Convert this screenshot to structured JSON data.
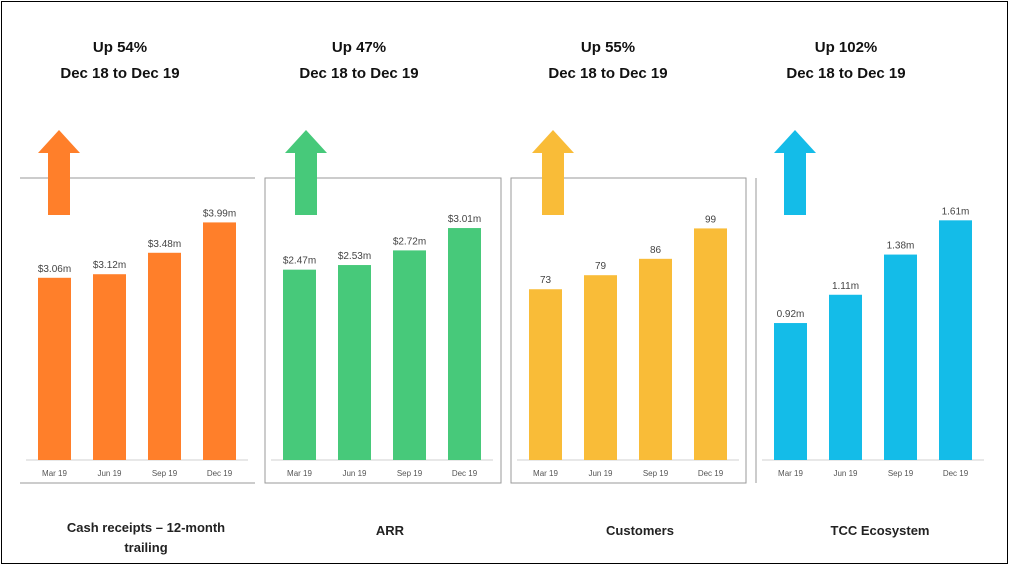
{
  "chart_data": [
    {
      "type": "bar",
      "title": "Cash receipts – 12-month trailing",
      "headline": "Up 54%",
      "subheadline": "Dec 18 to Dec 19",
      "categories": [
        "Mar 19",
        "Jun 19",
        "Sep 19",
        "Dec 19"
      ],
      "values": [
        3.06,
        3.12,
        3.48,
        3.99
      ],
      "labels": [
        "$3.06m",
        "$3.12m",
        "$3.48m",
        "$3.99m"
      ],
      "color": "#FF7F2A",
      "ylim": [
        0,
        4.4
      ]
    },
    {
      "type": "bar",
      "title": "ARR",
      "headline": "Up 47%",
      "subheadline": "Dec 18 to Dec 19",
      "categories": [
        "Mar 19",
        "Jun 19",
        "Sep 19",
        "Dec 19"
      ],
      "values": [
        2.47,
        2.53,
        2.72,
        3.01
      ],
      "labels": [
        "$2.47m",
        "$2.53m",
        "$2.72m",
        "$3.01m"
      ],
      "color": "#47C97A",
      "ylim": [
        0,
        3.4
      ]
    },
    {
      "type": "bar",
      "title": "Customers",
      "headline": "Up 55%",
      "subheadline": "Dec 18 to Dec 19",
      "categories": [
        "Mar 19",
        "Jun 19",
        "Sep 19",
        "Dec 19"
      ],
      "values": [
        73,
        79,
        86,
        99
      ],
      "labels": [
        "73",
        "79",
        "86",
        "99"
      ],
      "color": "#F9BC38",
      "ylim": [
        0,
        112
      ]
    },
    {
      "type": "bar",
      "title": "TCC Ecosystem",
      "headline": "Up 102%",
      "subheadline": "Dec 18 to Dec 19",
      "categories": [
        "Mar 19",
        "Jun 19",
        "Sep 19",
        "Dec 19"
      ],
      "values": [
        0.92,
        1.11,
        1.38,
        1.61
      ],
      "labels": [
        "0.92m",
        "1.11m",
        "1.38m",
        "1.61m"
      ],
      "color": "#14BCE8",
      "ylim": [
        0,
        1.76
      ]
    }
  ]
}
